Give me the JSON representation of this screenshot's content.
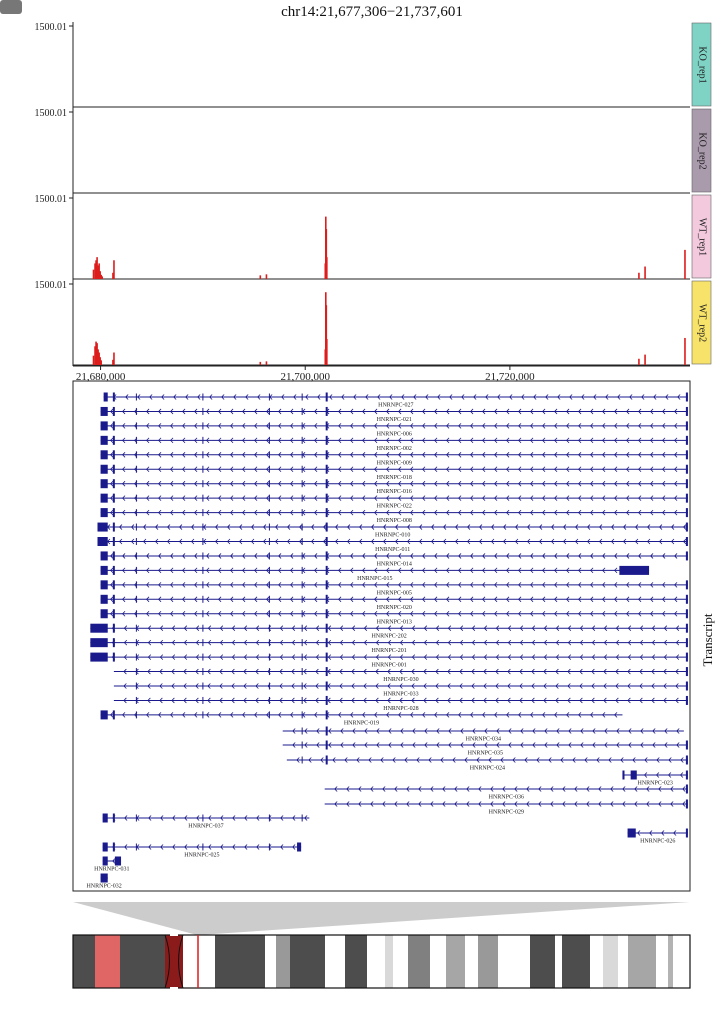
{
  "chart_data": [
    {
      "type": "bar",
      "title": "chr14:21,677,306−21,737,601",
      "region": {
        "chrom": "chr14",
        "start": 21677306,
        "end": 21737601
      },
      "ylabel": "",
      "xlabel": "",
      "x_ticks": [
        {
          "value": 21680000,
          "label": "21,680,000"
        },
        {
          "value": 21700000,
          "label": "21,700,000"
        },
        {
          "value": 21720000,
          "label": "21,720,000"
        }
      ],
      "series": [
        {
          "name": "KO_rep1",
          "color": "#7fd3c4",
          "ymax_label": "1500.01",
          "ymax": 1500.01,
          "values": []
        },
        {
          "name": "KO_rep2",
          "color": "#a99aac",
          "ymax_label": "1500.01",
          "ymax": 1500.01,
          "values": []
        },
        {
          "name": "WT_rep1",
          "color": "#f3c9dd",
          "ymax_label": "1500.01",
          "ymax": 1500.01,
          "values": [
            [
              21679300,
              180
            ],
            [
              21679450,
              300
            ],
            [
              21679550,
              360
            ],
            [
              21679650,
              420
            ],
            [
              21679750,
              260
            ],
            [
              21679850,
              300
            ],
            [
              21679950,
              150
            ],
            [
              21680050,
              80
            ],
            [
              21680150,
              50
            ],
            [
              21681200,
              120
            ],
            [
              21681300,
              360
            ],
            [
              21695600,
              70
            ],
            [
              21696200,
              90
            ],
            [
              21701950,
              300
            ],
            [
              21702000,
              1200
            ],
            [
              21702050,
              960
            ],
            [
              21702100,
              420
            ],
            [
              21732600,
              120
            ],
            [
              21733200,
              240
            ],
            [
              21737100,
              560
            ]
          ]
        },
        {
          "name": "WT_rep2",
          "color": "#f8e36a",
          "ymax_label": "1500.01",
          "ymax": 1500.01,
          "values": [
            [
              21679300,
              180
            ],
            [
              21679450,
              360
            ],
            [
              21679550,
              450
            ],
            [
              21679650,
              420
            ],
            [
              21679750,
              300
            ],
            [
              21679850,
              240
            ],
            [
              21679950,
              150
            ],
            [
              21680050,
              90
            ],
            [
              21681200,
              100
            ],
            [
              21681300,
              240
            ],
            [
              21695600,
              60
            ],
            [
              21696200,
              70
            ],
            [
              21701950,
              300
            ],
            [
              21702000,
              1400
            ],
            [
              21702050,
              1150
            ],
            [
              21702100,
              500
            ],
            [
              21732600,
              120
            ],
            [
              21733200,
              200
            ],
            [
              21737100,
              520
            ]
          ]
        }
      ],
      "bar_color": "#dd1c1c",
      "grid": false
    },
    {
      "type": "gene-track",
      "panel_label": "Transcript",
      "strand": "-",
      "color": "#1a1a8c",
      "transcripts": [
        {
          "name": "HNRNPC-027",
          "start": 21680300,
          "end": 21737400,
          "exons": [
            [
              21680300,
              21680700
            ],
            [
              21681200,
              21681350
            ],
            [
              21702000,
              21702150
            ],
            [
              21737200,
              21737400
            ]
          ]
        },
        {
          "name": "HNRNPC-021",
          "start": 21680000,
          "end": 21737400,
          "exons": [
            [
              21680000,
              21680700
            ],
            [
              21681200,
              21681350
            ],
            [
              21702000,
              21702150
            ],
            [
              21737200,
              21737400
            ]
          ]
        },
        {
          "name": "HNRNPC-006",
          "start": 21680000,
          "end": 21737400,
          "exons": [
            [
              21680000,
              21680700
            ],
            [
              21681200,
              21681350
            ],
            [
              21702000,
              21702150
            ],
            [
              21737200,
              21737400
            ]
          ]
        },
        {
          "name": "HNRNPC-002",
          "start": 21680000,
          "end": 21737400,
          "exons": [
            [
              21680000,
              21680700
            ],
            [
              21681200,
              21681350
            ],
            [
              21702000,
              21702150
            ],
            [
              21737200,
              21737400
            ]
          ]
        },
        {
          "name": "HNRNPC-009",
          "start": 21680000,
          "end": 21737400,
          "exons": [
            [
              21680000,
              21680700
            ],
            [
              21681200,
              21681350
            ],
            [
              21702000,
              21702150
            ],
            [
              21737200,
              21737400
            ]
          ]
        },
        {
          "name": "HNRNPC-018",
          "start": 21680000,
          "end": 21737400,
          "exons": [
            [
              21680000,
              21680700
            ],
            [
              21681200,
              21681350
            ],
            [
              21702000,
              21702150
            ],
            [
              21737200,
              21737400
            ]
          ]
        },
        {
          "name": "HNRNPC-016",
          "start": 21680000,
          "end": 21737400,
          "exons": [
            [
              21680000,
              21680700
            ],
            [
              21681200,
              21681350
            ],
            [
              21702000,
              21702150
            ],
            [
              21737200,
              21737400
            ]
          ]
        },
        {
          "name": "HNRNPC-022",
          "start": 21680000,
          "end": 21737400,
          "exons": [
            [
              21680000,
              21680700
            ],
            [
              21681200,
              21681350
            ],
            [
              21702000,
              21702150
            ],
            [
              21737200,
              21737400
            ]
          ]
        },
        {
          "name": "HNRNPC-008",
          "start": 21680000,
          "end": 21737400,
          "exons": [
            [
              21680000,
              21680700
            ],
            [
              21681200,
              21681350
            ],
            [
              21702000,
              21702150
            ],
            [
              21737200,
              21737400
            ]
          ]
        },
        {
          "name": "HNRNPC-010",
          "start": 21679700,
          "end": 21737400,
          "exons": [
            [
              21679700,
              21680700
            ],
            [
              21681200,
              21681350
            ],
            [
              21702000,
              21702150
            ],
            [
              21737200,
              21737400
            ]
          ]
        },
        {
          "name": "HNRNPC-011",
          "start": 21679700,
          "end": 21737400,
          "exons": [
            [
              21679700,
              21680700
            ],
            [
              21681200,
              21681350
            ],
            [
              21702000,
              21702150
            ],
            [
              21737200,
              21737400
            ]
          ]
        },
        {
          "name": "HNRNPC-014",
          "start": 21680000,
          "end": 21737400,
          "exons": [
            [
              21680000,
              21680700
            ],
            [
              21681200,
              21681350
            ],
            [
              21702000,
              21702150
            ],
            [
              21737200,
              21737400
            ]
          ]
        },
        {
          "name": "HNRNPC-015",
          "start": 21680000,
          "end": 21733600,
          "exons": [
            [
              21680000,
              21680700
            ],
            [
              21681200,
              21681350
            ],
            [
              21702000,
              21702150
            ],
            [
              21730700,
              21733600
            ]
          ]
        },
        {
          "name": "HNRNPC-005",
          "start": 21680000,
          "end": 21737400,
          "exons": [
            [
              21680000,
              21680700
            ],
            [
              21681200,
              21681350
            ],
            [
              21702000,
              21702150
            ],
            [
              21737200,
              21737400
            ]
          ]
        },
        {
          "name": "HNRNPC-020",
          "start": 21680000,
          "end": 21737400,
          "exons": [
            [
              21680000,
              21680700
            ],
            [
              21681200,
              21681350
            ],
            [
              21702000,
              21702150
            ],
            [
              21737200,
              21737400
            ]
          ]
        },
        {
          "name": "HNRNPC-013",
          "start": 21680000,
          "end": 21737400,
          "exons": [
            [
              21680000,
              21680700
            ],
            [
              21681200,
              21681350
            ],
            [
              21702000,
              21702150
            ],
            [
              21737200,
              21737400
            ]
          ]
        },
        {
          "name": "HNRNPC-202",
          "start": 21679000,
          "end": 21737400,
          "exons": [
            [
              21679000,
              21680700
            ],
            [
              21681200,
              21681350
            ],
            [
              21702000,
              21702150
            ],
            [
              21737200,
              21737400
            ]
          ]
        },
        {
          "name": "HNRNPC-201",
          "start": 21679000,
          "end": 21737400,
          "exons": [
            [
              21679000,
              21680700
            ],
            [
              21681200,
              21681350
            ],
            [
              21702000,
              21702150
            ],
            [
              21737200,
              21737400
            ]
          ]
        },
        {
          "name": "HNRNPC-001",
          "start": 21679000,
          "end": 21737400,
          "exons": [
            [
              21679000,
              21680700
            ],
            [
              21681200,
              21681350
            ],
            [
              21702000,
              21702150
            ],
            [
              21737200,
              21737400
            ]
          ]
        },
        {
          "name": "HNRNPC-030",
          "start": 21681300,
          "end": 21737400,
          "exons": [
            [
              21702000,
              21702150
            ],
            [
              21737200,
              21737400
            ]
          ]
        },
        {
          "name": "HNRNPC-033",
          "start": 21681300,
          "end": 21737400,
          "exons": [
            [
              21702000,
              21702150
            ],
            [
              21737200,
              21737400
            ]
          ]
        },
        {
          "name": "HNRNPC-028",
          "start": 21681300,
          "end": 21737400,
          "exons": [
            [
              21702000,
              21702150
            ],
            [
              21737200,
              21737400
            ]
          ]
        },
        {
          "name": "HNRNPC-019",
          "start": 21680000,
          "end": 21731000,
          "exons": [
            [
              21680000,
              21680700
            ],
            [
              21681200,
              21681350
            ],
            [
              21702000,
              21702150
            ]
          ]
        },
        {
          "name": "HNRNPC-034",
          "start": 21697800,
          "end": 21737000,
          "exons": [
            [
              21702000,
              21702150
            ]
          ]
        },
        {
          "name": "HNRNPC-035",
          "start": 21697800,
          "end": 21737400,
          "exons": [
            [
              21702000,
              21702150
            ],
            [
              21737200,
              21737400
            ]
          ]
        },
        {
          "name": "HNRNPC-024",
          "start": 21698200,
          "end": 21737400,
          "exons": [
            [
              21702000,
              21702150
            ],
            [
              21737200,
              21737400
            ]
          ]
        },
        {
          "name": "HNRNPC-023",
          "start": 21731000,
          "end": 21737400,
          "exons": [
            [
              21731000,
              21731200
            ],
            [
              21731800,
              21732400
            ],
            [
              21737200,
              21737400
            ]
          ]
        },
        {
          "name": "HNRNPC-036",
          "start": 21701900,
          "end": 21737400,
          "exons": [
            [
              21737200,
              21737400
            ]
          ]
        },
        {
          "name": "HNRNPC-029",
          "start": 21701900,
          "end": 21737400,
          "exons": [
            [
              21737200,
              21737400
            ]
          ]
        },
        {
          "name": "HNRNPC-037",
          "start": 21680200,
          "end": 21700400,
          "exons": [
            [
              21680200,
              21680700
            ],
            [
              21681200,
              21681350
            ]
          ]
        },
        {
          "name": "HNRNPC-026",
          "start": 21731500,
          "end": 21737400,
          "exons": [
            [
              21731500,
              21732300
            ],
            [
              21737200,
              21737400
            ]
          ]
        },
        {
          "name": "HNRNPC-025",
          "start": 21680200,
          "end": 21699600,
          "exons": [
            [
              21680200,
              21680700
            ],
            [
              21681200,
              21681350
            ],
            [
              21699200,
              21699600
            ]
          ]
        },
        {
          "name": "HNRNPC-031",
          "start": 21680200,
          "end": 21682000,
          "exons": [
            [
              21680200,
              21680700
            ],
            [
              21681400,
              21682000
            ]
          ]
        },
        {
          "name": "HNRNPC-032",
          "start": 21680000,
          "end": 21680700,
          "exons": [
            [
              21680000,
              21680700
            ]
          ]
        }
      ]
    }
  ]
}
